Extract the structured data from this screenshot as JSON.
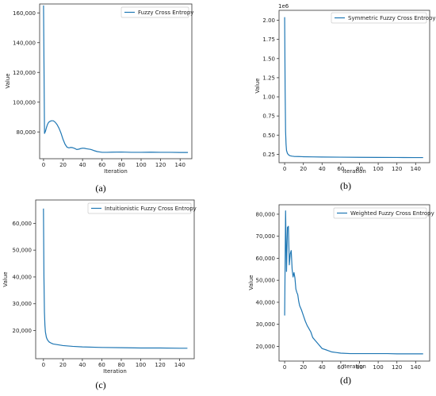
{
  "figure": {
    "chart_data": [
      {
        "panel": "(a)",
        "type": "line",
        "xlabel": "Iteration",
        "ylabel": "Value",
        "xlim": [
          -4,
          152
        ],
        "ylim": [
          62000,
          166000
        ],
        "xticks": [
          0,
          20,
          40,
          60,
          80,
          100,
          120,
          140
        ],
        "yticks": [
          80000,
          100000,
          120000,
          140000,
          160000
        ],
        "yticklabels": [
          "80,000",
          "100,000",
          "120,000",
          "140,000",
          "160,000"
        ],
        "y_offset_label": "",
        "legend": "top-right",
        "series": [
          {
            "name": "Fuzzy Cross Entropy",
            "color": "#1f77b4",
            "x": [
              0,
              1,
              2,
              3,
              4,
              5,
              6,
              8,
              10,
              12,
              14,
              16,
              18,
              20,
              22,
              24,
              26,
              28,
              30,
              32,
              34,
              36,
              38,
              40,
              42,
              44,
              46,
              48,
              50,
              52,
              55,
              58,
              60,
              65,
              70,
              80,
              90,
              100,
              110,
              120,
              130,
              140,
              148
            ],
            "y": [
              165000,
              79000,
              80500,
              83000,
              85000,
              86200,
              86900,
              87500,
              87500,
              86500,
              84800,
              82300,
              79000,
              75000,
              71800,
              69800,
              69300,
              69600,
              69400,
              68900,
              68200,
              68400,
              68800,
              69100,
              69000,
              68700,
              68500,
              68300,
              67900,
              67400,
              66800,
              66500,
              66300,
              66300,
              66400,
              66500,
              66300,
              66300,
              66400,
              66300,
              66300,
              66200,
              66200
            ]
          }
        ]
      },
      {
        "panel": "(b)",
        "type": "line",
        "xlabel": "Iteration",
        "ylabel": "Value",
        "xlim": [
          -6,
          155
        ],
        "ylim": [
          0.14,
          2.13
        ],
        "xticks": [
          0,
          20,
          40,
          60,
          80,
          100,
          120,
          140
        ],
        "yticks": [
          0.25,
          0.5,
          0.75,
          1.0,
          1.25,
          1.5,
          1.75,
          2.0
        ],
        "yticklabels": [
          "0.25",
          "0.50",
          "0.75",
          "1.00",
          "1.25",
          "1.50",
          "1.75",
          "2.00"
        ],
        "y_offset_label": "1e6",
        "legend": "top-right",
        "series": [
          {
            "name": "Symmetric Fuzzy Cross Entropy",
            "color": "#1f77b4",
            "x": [
              0,
              0.5,
              1,
              1.5,
              2,
              3,
              4,
              5,
              6,
              8,
              10,
              15,
              20,
              30,
              40,
              60,
              80,
              100,
              120,
              140,
              148
            ],
            "y": [
              2.04,
              1.1,
              0.55,
              0.38,
              0.3,
              0.26,
              0.245,
              0.235,
              0.23,
              0.225,
              0.222,
              0.22,
              0.218,
              0.216,
              0.214,
              0.212,
              0.21,
              0.209,
              0.208,
              0.207,
              0.207
            ]
          }
        ]
      },
      {
        "panel": "(c)",
        "type": "line",
        "xlabel": "Iteration",
        "ylabel": "Value",
        "xlim": [
          -8,
          155
        ],
        "ylim": [
          9500,
          68700
        ],
        "xticks": [
          0,
          20,
          40,
          60,
          80,
          100,
          120,
          140
        ],
        "yticks": [
          20000,
          30000,
          40000,
          50000,
          60000
        ],
        "yticklabels": [
          "20,000",
          "30,000",
          "40,000",
          "50,000",
          "60,000"
        ],
        "y_offset_label": "",
        "legend": "top-right",
        "series": [
          {
            "name": "Intuitionistic Fuzzy Cross Entropy",
            "color": "#1f77b4",
            "x": [
              0,
              0.5,
              1,
              1.5,
              2,
              3,
              4,
              5,
              6,
              8,
              10,
              15,
              20,
              30,
              40,
              60,
              80,
              100,
              120,
              140,
              148
            ],
            "y": [
              65500,
              40000,
              27000,
              22000,
              19500,
              17500,
              16600,
              16100,
              15700,
              15300,
              15000,
              14700,
              14400,
              14100,
              13900,
              13700,
              13600,
              13500,
              13500,
              13400,
              13400
            ]
          }
        ]
      },
      {
        "panel": "(d)",
        "type": "line",
        "xlabel": "Iteration",
        "ylabel": "Value",
        "xlim": [
          -6,
          155
        ],
        "ylim": [
          13300,
          84300
        ],
        "xticks": [
          0,
          20,
          40,
          60,
          80,
          100,
          120,
          140
        ],
        "yticks": [
          20000,
          30000,
          40000,
          50000,
          60000,
          70000,
          80000
        ],
        "yticklabels": [
          "20,000",
          "30,000",
          "40,000",
          "50,000",
          "60,000",
          "70,000",
          "80,000"
        ],
        "y_offset_label": "",
        "legend": "top-right",
        "series": [
          {
            "name": "Weighted Fuzzy Cross Entropy",
            "color": "#1f77b4",
            "x": [
              0,
              1,
              2,
              3,
              4,
              5,
              6,
              7,
              8,
              9,
              10,
              11,
              12,
              13,
              14,
              15,
              16,
              17,
              18,
              20,
              22,
              24,
              26,
              28,
              30,
              33,
              36,
              40,
              45,
              50,
              55,
              60,
              70,
              80,
              90,
              100,
              110,
              120,
              130,
              140,
              148
            ],
            "y": [
              34000,
              81500,
              54000,
              74000,
              74500,
              57000,
              62000,
              63500,
              55000,
              51500,
              53500,
              51000,
              46000,
              44500,
              43500,
              40500,
              38500,
              37500,
              36500,
              34000,
              31500,
              29500,
              28000,
              26500,
              24000,
              22500,
              21000,
              19000,
              18300,
              17500,
              17200,
              16900,
              16700,
              16700,
              16700,
              16700,
              16700,
              16600,
              16600,
              16600,
              16600
            ]
          }
        ]
      }
    ]
  }
}
